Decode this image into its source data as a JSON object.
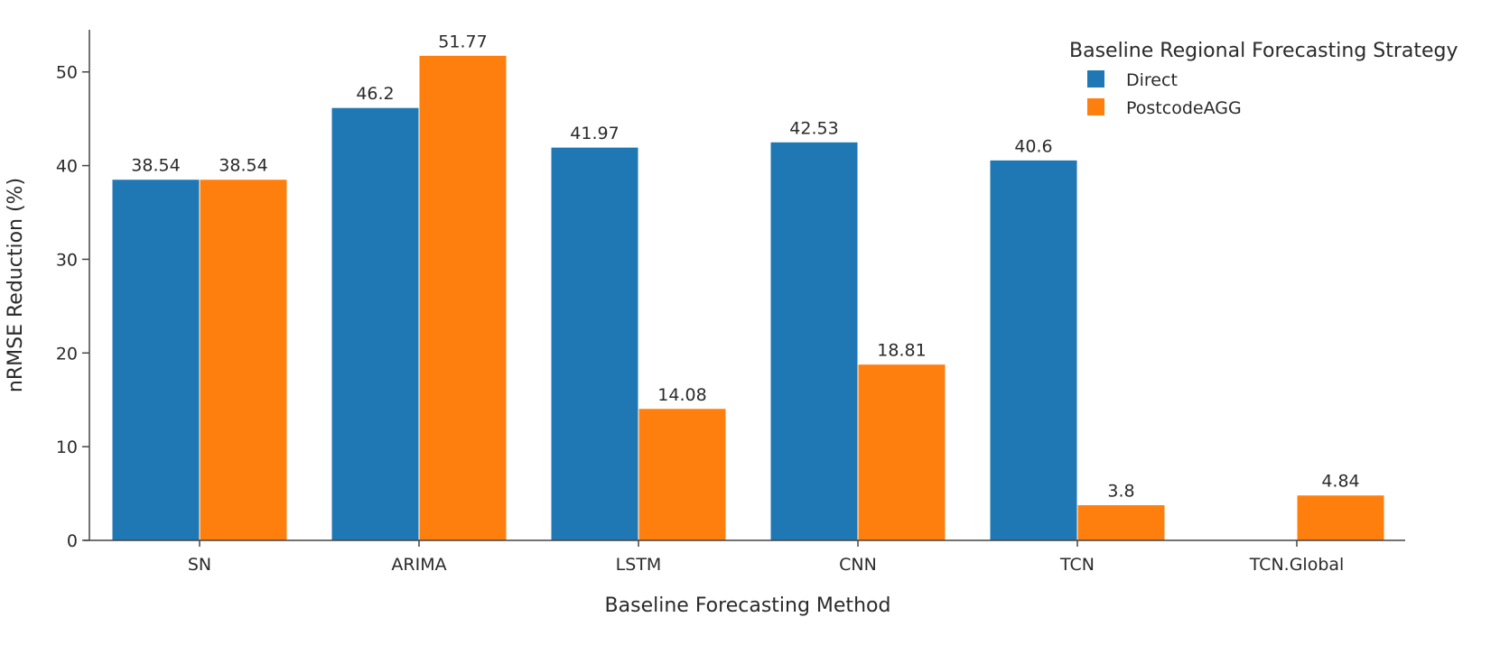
{
  "chart_data": {
    "type": "bar",
    "xlabel": "Baseline Forecasting Method",
    "ylabel": "nRMSE Reduction (%)",
    "categories": [
      "SN",
      "ARIMA",
      "LSTM",
      "CNN",
      "TCN",
      "TCN.Global"
    ],
    "ylim": [
      0,
      54.5
    ],
    "yticks": [
      0,
      10,
      20,
      30,
      40,
      50
    ],
    "grid": false,
    "legend": {
      "title": "Baseline Regional Forecasting Strategy",
      "placement": "top-right"
    },
    "series": [
      {
        "name": "Direct",
        "color": "#1f77b4",
        "values": [
          38.54,
          46.2,
          41.97,
          42.53,
          40.6,
          null
        ],
        "labels": [
          "38.54",
          "46.2",
          "41.97",
          "42.53",
          "40.6",
          ""
        ]
      },
      {
        "name": "PostcodeAGG",
        "color": "#ff7f0e",
        "values": [
          38.54,
          51.77,
          14.08,
          18.81,
          3.8,
          4.84
        ],
        "labels": [
          "38.54",
          "51.77",
          "14.08",
          "18.81",
          "3.8",
          "4.84"
        ]
      }
    ]
  }
}
